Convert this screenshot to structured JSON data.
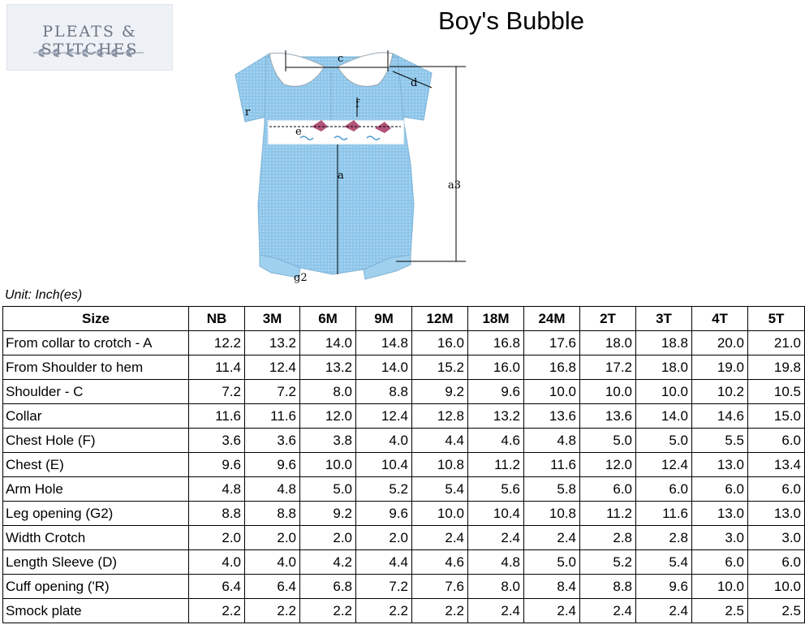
{
  "logo": {
    "text": "PLEATS & STITCHES"
  },
  "title": "Boy's Bubble",
  "diagram_labels": {
    "c": "c",
    "d": "d",
    "r": "r",
    "f": "f",
    "e": "e",
    "a": "a",
    "a3": "a3",
    "g2": "g2"
  },
  "unit": "Unit: Inch(es)",
  "table": {
    "size_header": "Size",
    "columns": [
      "NB",
      "3M",
      "6M",
      "9M",
      "12M",
      "18M",
      "24M",
      "2T",
      "3T",
      "4T",
      "5T"
    ],
    "rows": [
      {
        "label": "From collar to crotch - A",
        "values": [
          "12.2",
          "13.2",
          "14.0",
          "14.8",
          "16.0",
          "16.8",
          "17.6",
          "18.0",
          "18.8",
          "20.0",
          "21.0"
        ]
      },
      {
        "label": "From Shoulder to hem",
        "values": [
          "11.4",
          "12.4",
          "13.2",
          "14.0",
          "15.2",
          "16.0",
          "16.8",
          "17.2",
          "18.0",
          "19.0",
          "19.8"
        ]
      },
      {
        "label": "Shoulder - C",
        "values": [
          "7.2",
          "7.2",
          "8.0",
          "8.8",
          "9.2",
          "9.6",
          "10.0",
          "10.0",
          "10.0",
          "10.2",
          "10.5"
        ]
      },
      {
        "label": "Collar",
        "values": [
          "11.6",
          "11.6",
          "12.0",
          "12.4",
          "12.8",
          "13.2",
          "13.6",
          "13.6",
          "14.0",
          "14.6",
          "15.0"
        ]
      },
      {
        "label": "Chest Hole (F)",
        "values": [
          "3.6",
          "3.6",
          "3.8",
          "4.0",
          "4.4",
          "4.6",
          "4.8",
          "5.0",
          "5.0",
          "5.5",
          "6.0"
        ]
      },
      {
        "label": "Chest (E)",
        "values": [
          "9.6",
          "9.6",
          "10.0",
          "10.4",
          "10.8",
          "11.2",
          "11.6",
          "12.0",
          "12.4",
          "13.0",
          "13.4"
        ]
      },
      {
        "label": "Arm Hole",
        "values": [
          "4.8",
          "4.8",
          "5.0",
          "5.2",
          "5.4",
          "5.6",
          "5.8",
          "6.0",
          "6.0",
          "6.0",
          "6.0"
        ]
      },
      {
        "label": "Leg opening (G2)",
        "values": [
          "8.8",
          "8.8",
          "9.2",
          "9.6",
          "10.0",
          "10.4",
          "10.8",
          "11.2",
          "11.6",
          "13.0",
          "13.0"
        ]
      },
      {
        "label": "Width Crotch",
        "values": [
          "2.0",
          "2.0",
          "2.0",
          "2.0",
          "2.4",
          "2.4",
          "2.4",
          "2.8",
          "2.8",
          "3.0",
          "3.0"
        ]
      },
      {
        "label": "Length Sleeve (D)",
        "values": [
          "4.0",
          "4.0",
          "4.2",
          "4.4",
          "4.6",
          "4.8",
          "5.0",
          "5.2",
          "5.4",
          "6.0",
          "6.0"
        ]
      },
      {
        "label": "Cuff opening  ('R)",
        "values": [
          "6.4",
          "6.4",
          "6.8",
          "7.2",
          "7.6",
          "8.0",
          "8.4",
          "8.8",
          "9.6",
          "10.0",
          "10.0"
        ]
      },
      {
        "label": "Smock plate",
        "values": [
          "2.2",
          "2.2",
          "2.2",
          "2.2",
          "2.2",
          "2.4",
          "2.4",
          "2.4",
          "2.4",
          "2.5",
          "2.5"
        ]
      }
    ]
  }
}
